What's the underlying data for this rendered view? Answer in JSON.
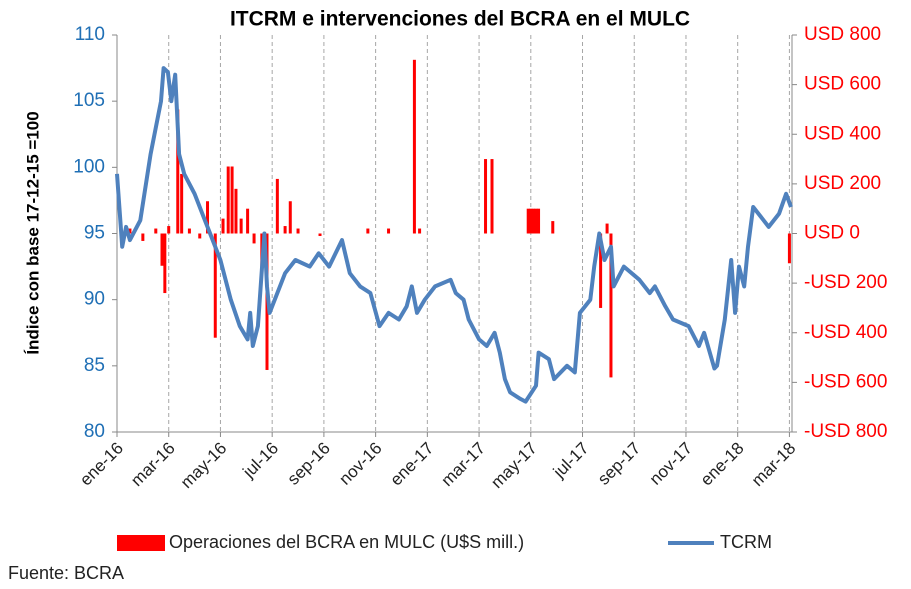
{
  "chart_data": {
    "type": "combo",
    "title": "ITCRM e intervenciones del BCRA en el MULC",
    "y_label": "Índice con base 17-12-15 =100",
    "source": "Fuente: BCRA",
    "grid": "x",
    "xlim": [
      0,
      26.1
    ],
    "xticks": [
      {
        "value": 0,
        "label": "ene-16"
      },
      {
        "value": 2,
        "label": "mar-16"
      },
      {
        "value": 4,
        "label": "may-16"
      },
      {
        "value": 6,
        "label": "jul-16"
      },
      {
        "value": 8,
        "label": "sep-16"
      },
      {
        "value": 10,
        "label": "nov-16"
      },
      {
        "value": 12,
        "label": "ene-17"
      },
      {
        "value": 14,
        "label": "mar-17"
      },
      {
        "value": 16,
        "label": "may-17"
      },
      {
        "value": 18,
        "label": "jul-17"
      },
      {
        "value": 20,
        "label": "sep-17"
      },
      {
        "value": 22,
        "label": "nov-17"
      },
      {
        "value": 24,
        "label": "ene-18"
      },
      {
        "value": 26,
        "label": "mar-18"
      }
    ],
    "ylim": [
      80,
      110
    ],
    "yticks": [
      80,
      85,
      90,
      95,
      100,
      105,
      110
    ],
    "y2lim": [
      -800,
      800
    ],
    "y2ticks": [
      {
        "value": 800,
        "label": "USD 800"
      },
      {
        "value": 600,
        "label": "USD 600"
      },
      {
        "value": 400,
        "label": "USD 400"
      },
      {
        "value": 200,
        "label": "USD 200"
      },
      {
        "value": 0,
        "label": "USD 0"
      },
      {
        "value": -200,
        "label": "-USD 200"
      },
      {
        "value": -400,
        "label": "-USD 400"
      },
      {
        "value": -600,
        "label": "-USD 600"
      },
      {
        "value": -800,
        "label": "-USD 800"
      }
    ],
    "series": [
      {
        "name": "Operaciones del BCRA en MULC (U$S mill.)",
        "type": "bar",
        "axis": "y2",
        "color": "#ff0000",
        "x": [
          0.5,
          1.0,
          1.5,
          1.74,
          1.85,
          2.0,
          2.35,
          2.5,
          2.8,
          3.2,
          3.5,
          3.8,
          4.1,
          4.3,
          4.45,
          4.6,
          4.8,
          5.05,
          5.3,
          5.6,
          5.8,
          6.2,
          6.5,
          6.7,
          7.0,
          7.85,
          9.7,
          10.5,
          11.5,
          11.7,
          14.25,
          14.5,
          15.9,
          16.0,
          16.1,
          16.2,
          16.3,
          16.85,
          18.7,
          18.95,
          19.1,
          26.0
        ],
        "values": [
          20,
          -30,
          20,
          -130,
          -240,
          30,
          500,
          240,
          20,
          -20,
          130,
          -420,
          60,
          270,
          270,
          180,
          60,
          100,
          -40,
          -150,
          -550,
          220,
          30,
          130,
          20,
          -10,
          20,
          20,
          700,
          20,
          300,
          300,
          100,
          100,
          100,
          100,
          100,
          50,
          -300,
          40,
          -580,
          -120
        ]
      },
      {
        "name": "TCRM",
        "type": "line",
        "color": "#4f81bd",
        "x": [
          0,
          0.2,
          0.35,
          0.5,
          0.9,
          1.3,
          1.7,
          1.8,
          1.97,
          2.1,
          2.25,
          2.4,
          2.6,
          3.0,
          3.4,
          3.6,
          4.0,
          4.4,
          4.75,
          5.05,
          5.15,
          5.25,
          5.45,
          5.7,
          5.8,
          5.9,
          6.5,
          6.9,
          7.45,
          7.8,
          8.2,
          8.7,
          9.0,
          9.4,
          9.8,
          10.15,
          10.5,
          10.9,
          11.2,
          11.4,
          11.6,
          11.9,
          12.3,
          12.9,
          13.1,
          13.4,
          13.6,
          14.0,
          14.3,
          14.6,
          14.8,
          15.0,
          15.2,
          15.6,
          15.8,
          16.2,
          16.3,
          16.7,
          16.9,
          17.4,
          17.7,
          17.9,
          18.3,
          18.45,
          18.65,
          18.85,
          19.1,
          19.2,
          19.6,
          20.2,
          20.6,
          20.8,
          21.2,
          21.5,
          22.1,
          22.5,
          22.7,
          23.1,
          23.2,
          23.5,
          23.75,
          23.9,
          24.05,
          24.25,
          24.4,
          24.6,
          25.0,
          25.2,
          25.6,
          25.87,
          26.06
        ],
        "values": [
          99.5,
          94,
          95.5,
          94.5,
          96,
          101,
          105,
          107.5,
          107.2,
          105,
          107,
          101,
          99.5,
          98,
          96,
          95,
          93,
          90,
          88,
          87,
          89,
          86.5,
          88,
          95,
          91,
          89,
          92,
          93,
          92.5,
          93.5,
          92.5,
          94.5,
          92,
          91,
          90.5,
          88,
          89,
          88.5,
          89.5,
          91,
          89,
          90,
          91,
          91.5,
          90.5,
          90,
          88.5,
          87,
          86.5,
          87.5,
          86,
          84,
          83,
          82.5,
          82.3,
          83.5,
          86,
          85.5,
          84,
          85,
          84.5,
          89,
          90,
          92.5,
          95,
          93,
          94,
          91,
          92.5,
          91.5,
          90.5,
          91,
          89.5,
          88.5,
          88,
          86.5,
          87.5,
          84.8,
          85,
          88.5,
          93,
          89,
          92.5,
          91,
          94,
          97,
          96,
          95.5,
          96.5,
          98,
          97
        ]
      }
    ]
  }
}
